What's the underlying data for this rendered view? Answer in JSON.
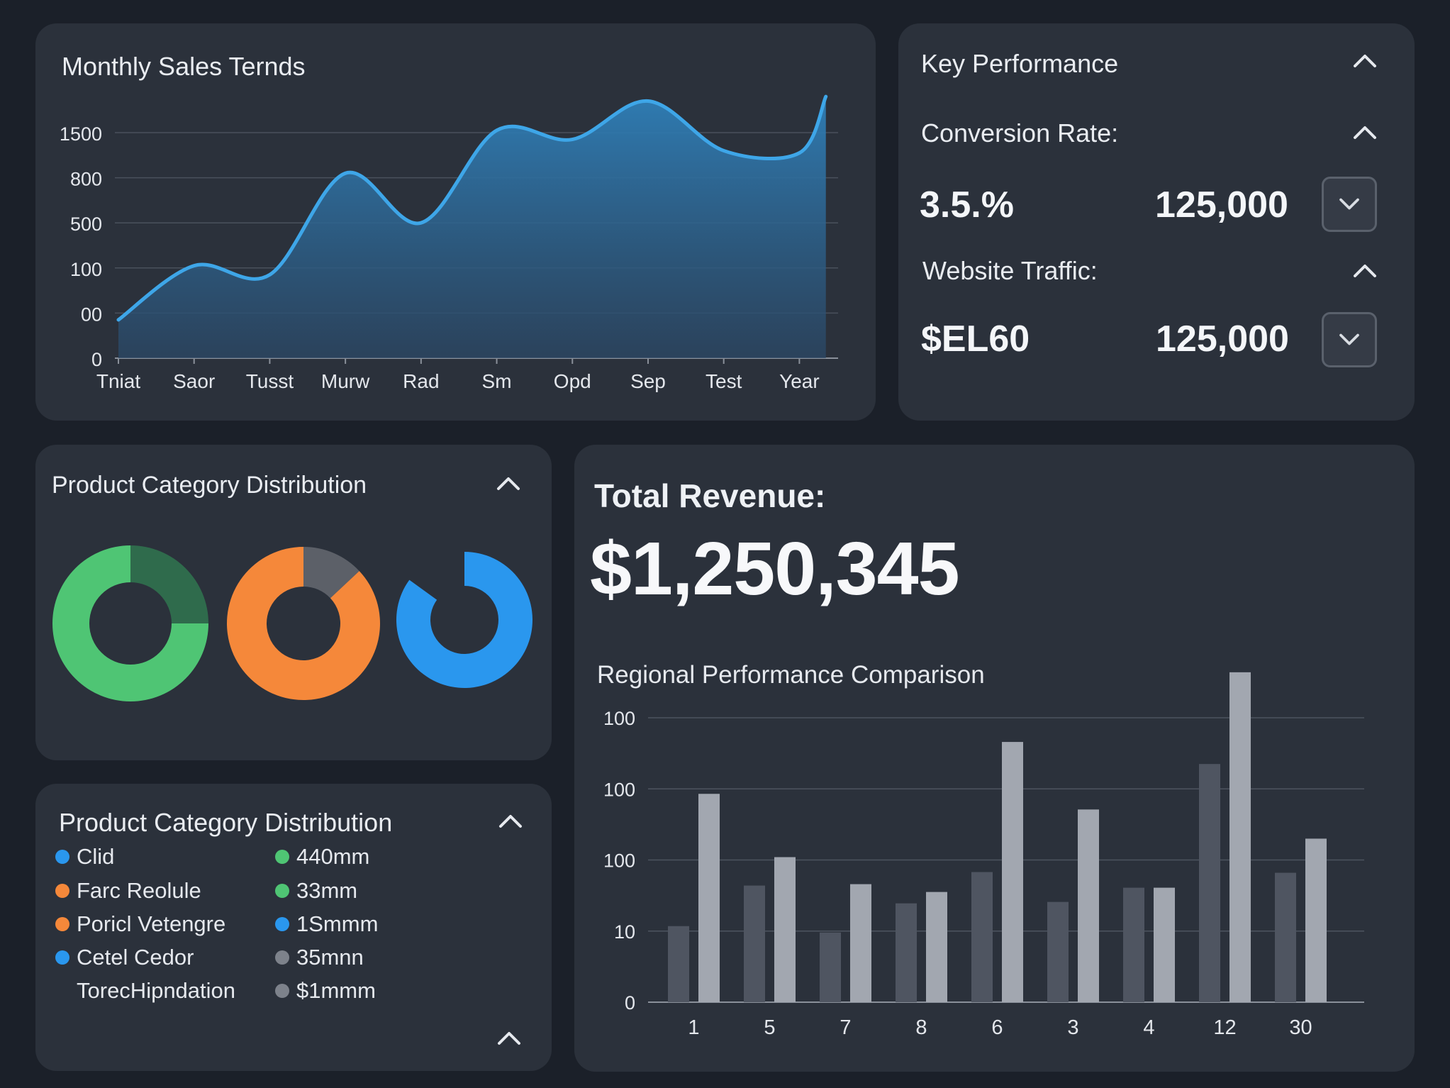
{
  "sales": {
    "title": "Monthly Sales Ternds"
  },
  "kpi": {
    "title": "Key Performance",
    "conversion_label": "Conversion Rate:",
    "conversion_value": "3.5.%",
    "conversion_secondary": "125,000",
    "traffic_label": "Website Traffic:",
    "traffic_value": "$EL60",
    "traffic_secondary": "125,000"
  },
  "donut_card": {
    "title": "Product Category Distribution",
    "donuts": [
      {
        "segments": [
          {
            "value": 25,
            "color": "#2f6b4c"
          },
          {
            "value": 75,
            "color": "#4fc574"
          }
        ]
      },
      {
        "segments": [
          {
            "value": 13,
            "color": "#5c6068"
          },
          {
            "value": 87,
            "color": "#f5883a"
          }
        ]
      },
      {
        "segments": [
          {
            "value": 85,
            "color": "#2a97ee"
          },
          {
            "value": 15,
            "color": "none"
          }
        ]
      }
    ]
  },
  "legend_card": {
    "title": "Product Category Distribution",
    "left_items": [
      {
        "label": "Clid",
        "color": "#2a97ee"
      },
      {
        "label": "Farc Reolule",
        "color": "#f5883a"
      },
      {
        "label": "Poricl Vetengre",
        "color": "#f5883a"
      },
      {
        "label": "Cetel Cedor",
        "color": "#2a97ee"
      },
      {
        "label": "TorecHipndation",
        "color": ""
      }
    ],
    "right_items": [
      {
        "label": "440mm",
        "color": "#4fc574"
      },
      {
        "label": "33mm",
        "color": "#4fc574"
      },
      {
        "label": "1Smmm",
        "color": "#2a97ee"
      },
      {
        "label": "35mnn",
        "color": "#7d828b"
      },
      {
        "label": "$1mmm",
        "color": "#7d828b"
      }
    ]
  },
  "revenue": {
    "label": "Total Revenue:",
    "value": "$1,250,345",
    "bar_title": "Regional Performance Comparison"
  },
  "chart_data": [
    {
      "type": "area",
      "title": "Monthly Sales Ternds",
      "categories": [
        "Tniat",
        "Saor",
        "Tusst",
        "Murw",
        "Rad",
        "Sm",
        "Opd",
        "Sep",
        "Test",
        "Year"
      ],
      "y_tick_labels": [
        "1500",
        "800",
        "500",
        "100",
        "00",
        "0"
      ],
      "x": [
        0,
        1,
        2,
        3,
        4,
        5,
        6,
        7,
        8,
        9,
        9.35
      ],
      "values": [
        55,
        115,
        97,
        245,
        180,
        325,
        290,
        350,
        185,
        180,
        180
      ],
      "value_note": "approximate, read on tick positions 0..6 (0, 00, 100, 500, 800, 1500 are spaced evenly)",
      "y_index": [
        0.85,
        2.05,
        1.85,
        4.1,
        3.0,
        5.05,
        4.85,
        5.7,
        4.6,
        4.55,
        5.8
      ],
      "grid": true,
      "color": "#3ea6e8"
    },
    {
      "type": "bar",
      "title": "Regional Performance Comparison",
      "categories": [
        "1",
        "5",
        "7",
        "8",
        "6",
        "3",
        "4",
        "12",
        "30"
      ],
      "y_tick_labels": [
        "100",
        "100",
        "100",
        "10",
        "0"
      ],
      "series": [
        {
          "values": [
            1.07,
            1.64,
            0.98,
            1.39,
            1.83,
            1.41,
            1.61,
            3.35,
            1.82
          ],
          "color": "#4f5561"
        },
        {
          "values": [
            2.93,
            2.04,
            1.66,
            1.55,
            3.66,
            2.71,
            1.61,
            4.64,
            2.3
          ],
          "color": "#a2a7b0"
        }
      ],
      "value_note": "bar heights expressed on tick index scale 0..4 (ticks evenly spaced, labelled 0,10,100,100,100)",
      "grid": true
    }
  ]
}
